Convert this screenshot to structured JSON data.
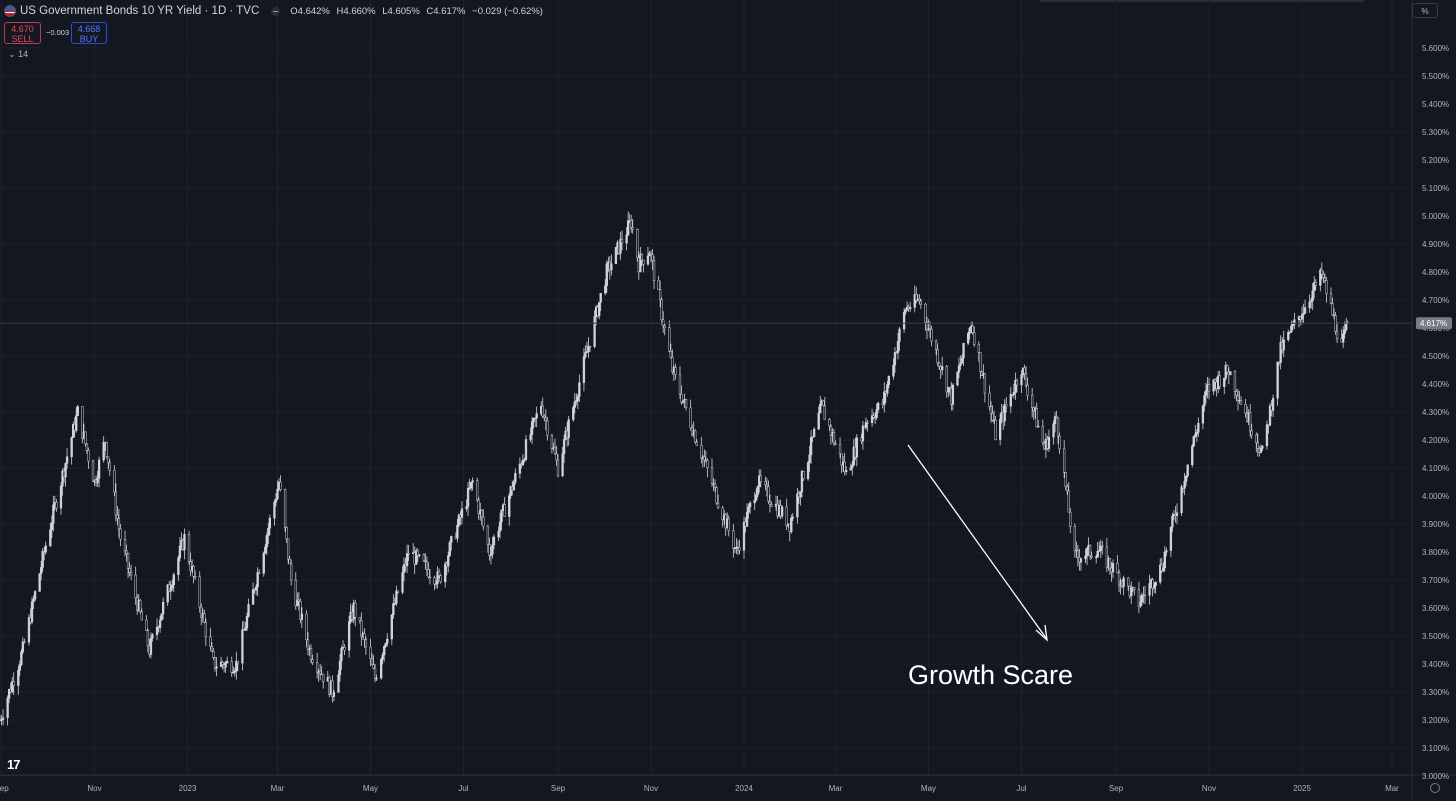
{
  "header": {
    "title": "US Government Bonds 10 YR Yield · 1D · TVC",
    "ohlc": {
      "open": "O4.642%",
      "high": "H4.660%",
      "low": "L4.605%",
      "close": "C4.617%",
      "change": "−0.029 (−0.62%)"
    }
  },
  "trade": {
    "sell_price": "4.670",
    "sell_label": "SELL",
    "spread": "−0.003",
    "buy_price": "4.668",
    "buy_label": "BUY"
  },
  "indicator": {
    "label": "14"
  },
  "scale_button": "%",
  "logo_text": "17",
  "annotation": "Growth Scare",
  "colors": {
    "background": "#131722",
    "candle": "#d1d4dc",
    "grid": "#1e222d",
    "price_line": "#363a45",
    "annotation": "#ffffff"
  },
  "chart_data": {
    "type": "candlestick",
    "interval": "1D",
    "y_unit": "%",
    "ylim": [
      3.0,
      5.65
    ],
    "y_ticks": [
      "3.000%",
      "3.100%",
      "3.200%",
      "3.300%",
      "3.400%",
      "3.500%",
      "3.600%",
      "3.700%",
      "3.800%",
      "3.900%",
      "4.000%",
      "4.100%",
      "4.200%",
      "4.300%",
      "4.400%",
      "4.500%",
      "4.600%",
      "4.700%",
      "4.800%",
      "4.900%",
      "5.000%",
      "5.100%",
      "5.200%",
      "5.300%",
      "5.400%",
      "5.500%",
      "5.600%"
    ],
    "x_ticks": [
      {
        "label": "Sep",
        "date": "2022-09-01"
      },
      {
        "label": "Nov",
        "date": "2022-11-01"
      },
      {
        "label": "2023",
        "date": "2023-01-01"
      },
      {
        "label": "Mar",
        "date": "2023-03-01"
      },
      {
        "label": "May",
        "date": "2023-05-01"
      },
      {
        "label": "Jul",
        "date": "2023-07-01"
      },
      {
        "label": "Sep",
        "date": "2023-09-01"
      },
      {
        "label": "Nov",
        "date": "2023-11-01"
      },
      {
        "label": "2024",
        "date": "2024-01-01"
      },
      {
        "label": "Mar",
        "date": "2024-03-01"
      },
      {
        "label": "May",
        "date": "2024-05-01"
      },
      {
        "label": "Jul",
        "date": "2024-07-01"
      },
      {
        "label": "Sep",
        "date": "2024-09-01"
      },
      {
        "label": "Nov",
        "date": "2024-11-01"
      },
      {
        "label": "2025",
        "date": "2025-01-01"
      },
      {
        "label": "Mar",
        "date": "2025-03-01"
      }
    ],
    "xlim": [
      "2022-08-31",
      "2025-04-12"
    ],
    "current_price": 4.617,
    "current_price_label": "4.617%",
    "key_points": [
      {
        "date": "2022-08-31",
        "value": 3.2
      },
      {
        "date": "2022-09-15",
        "value": 3.45
      },
      {
        "date": "2022-10-01",
        "value": 3.85
      },
      {
        "date": "2022-10-21",
        "value": 4.3
      },
      {
        "date": "2022-11-01",
        "value": 4.05
      },
      {
        "date": "2022-11-08",
        "value": 4.2
      },
      {
        "date": "2022-11-18",
        "value": 3.85
      },
      {
        "date": "2022-12-07",
        "value": 3.45
      },
      {
        "date": "2022-12-30",
        "value": 3.85
      },
      {
        "date": "2023-01-18",
        "value": 3.4
      },
      {
        "date": "2023-02-02",
        "value": 3.4
      },
      {
        "date": "2023-03-02",
        "value": 4.05
      },
      {
        "date": "2023-03-10",
        "value": 3.7
      },
      {
        "date": "2023-03-22",
        "value": 3.45
      },
      {
        "date": "2023-04-06",
        "value": 3.3
      },
      {
        "date": "2023-04-20",
        "value": 3.6
      },
      {
        "date": "2023-05-04",
        "value": 3.35
      },
      {
        "date": "2023-05-26",
        "value": 3.8
      },
      {
        "date": "2023-06-15",
        "value": 3.7
      },
      {
        "date": "2023-07-07",
        "value": 4.05
      },
      {
        "date": "2023-07-18",
        "value": 3.8
      },
      {
        "date": "2023-08-21",
        "value": 4.33
      },
      {
        "date": "2023-09-01",
        "value": 4.1
      },
      {
        "date": "2023-10-03",
        "value": 4.8
      },
      {
        "date": "2023-10-19",
        "value": 4.98
      },
      {
        "date": "2023-10-24",
        "value": 4.83
      },
      {
        "date": "2023-10-31",
        "value": 4.88
      },
      {
        "date": "2023-11-15",
        "value": 4.45
      },
      {
        "date": "2023-12-01",
        "value": 4.2
      },
      {
        "date": "2023-12-27",
        "value": 3.8
      },
      {
        "date": "2024-01-10",
        "value": 4.05
      },
      {
        "date": "2024-01-31",
        "value": 3.9
      },
      {
        "date": "2024-02-21",
        "value": 4.32
      },
      {
        "date": "2024-03-08",
        "value": 4.08
      },
      {
        "date": "2024-03-21",
        "value": 4.27
      },
      {
        "date": "2024-04-01",
        "value": 4.33
      },
      {
        "date": "2024-04-16",
        "value": 4.67
      },
      {
        "date": "2024-04-25",
        "value": 4.7
      },
      {
        "date": "2024-05-16",
        "value": 4.35
      },
      {
        "date": "2024-05-29",
        "value": 4.62
      },
      {
        "date": "2024-06-14",
        "value": 4.22
      },
      {
        "date": "2024-07-01",
        "value": 4.46
      },
      {
        "date": "2024-07-16",
        "value": 4.17
      },
      {
        "date": "2024-07-24",
        "value": 4.28
      },
      {
        "date": "2024-08-05",
        "value": 3.78
      },
      {
        "date": "2024-08-20",
        "value": 3.81
      },
      {
        "date": "2024-09-16",
        "value": 3.62
      },
      {
        "date": "2024-10-01",
        "value": 3.75
      },
      {
        "date": "2024-10-22",
        "value": 4.2
      },
      {
        "date": "2024-10-31",
        "value": 4.38
      },
      {
        "date": "2024-11-14",
        "value": 4.45
      },
      {
        "date": "2024-12-06",
        "value": 4.15
      },
      {
        "date": "2024-12-18",
        "value": 4.52
      },
      {
        "date": "2025-01-14",
        "value": 4.79
      },
      {
        "date": "2025-01-27",
        "value": 4.53
      },
      {
        "date": "2025-01-31",
        "value": 4.617
      }
    ]
  }
}
